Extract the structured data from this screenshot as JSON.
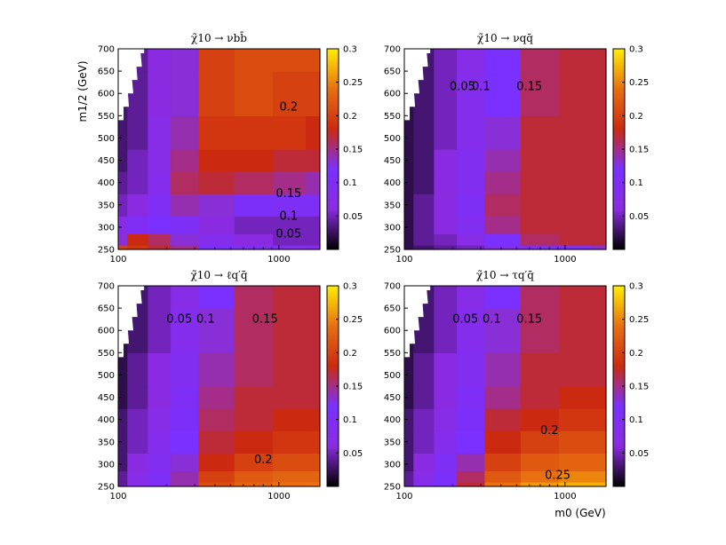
{
  "figure": {
    "ylabel": "m1/2 (GeV)",
    "xlabel": "m0 (GeV)"
  },
  "chart_data": [
    {
      "type": "heatmap",
      "title": "χ̃10 → νbb̄",
      "xlim": [
        100,
        1800
      ],
      "x_scale": "log",
      "ylim": [
        250,
        700
      ],
      "x_ticks": [
        "100",
        "1000"
      ],
      "y_ticks": [
        "250",
        "300",
        "350",
        "400",
        "450",
        "500",
        "550",
        "600",
        "650",
        "700"
      ],
      "colorbar": {
        "range": [
          0,
          0.3
        ],
        "ticks": [
          "0.05",
          "0.1",
          "0.15",
          "0.2",
          "0.25",
          "0.3"
        ],
        "colormap": [
          "#000000",
          "#8a2be2",
          "#7a30ff",
          "#cc2a10",
          "#e87010",
          "#ffee00"
        ]
      },
      "contour_levels": [
        "0.05",
        "0.1",
        "0.15",
        "0.2"
      ],
      "excluded_region": "white staircase at low m0, high m1/2",
      "grid": false,
      "x": [
        100,
        130,
        180,
        250,
        400,
        700,
        1200,
        1800
      ],
      "y": [
        250,
        270,
        300,
        350,
        400,
        450,
        500,
        600,
        700
      ],
      "values": [
        [
          0.2,
          0.19,
          0.17,
          0.15,
          0.12,
          0.1,
          0.09,
          0.08
        ],
        [
          0.13,
          0.18,
          0.16,
          0.13,
          0.08,
          0.06,
          0.05,
          0.05
        ],
        [
          0.07,
          0.1,
          0.12,
          0.1,
          0.06,
          0.05,
          0.05,
          0.05
        ],
        [
          0.05,
          0.06,
          0.1,
          0.14,
          0.13,
          0.11,
          0.1,
          0.1
        ],
        [
          0.04,
          0.05,
          0.08,
          0.16,
          0.17,
          0.16,
          0.15,
          0.14
        ],
        [
          0.03,
          0.05,
          0.07,
          0.15,
          0.18,
          0.18,
          0.17,
          0.17
        ],
        [
          0.03,
          0.04,
          0.07,
          0.14,
          0.19,
          0.19,
          0.19,
          0.18
        ],
        [
          0.03,
          0.04,
          0.06,
          0.13,
          0.2,
          0.21,
          0.2,
          0.2
        ],
        [
          0.03,
          0.04,
          0.06,
          0.13,
          0.2,
          0.21,
          0.21,
          0.21
        ]
      ]
    },
    {
      "type": "heatmap",
      "title": "χ̃10 → νqq̄",
      "xlim": [
        100,
        1800
      ],
      "x_scale": "log",
      "ylim": [
        250,
        700
      ],
      "x_ticks": [
        "100",
        "1000"
      ],
      "y_ticks": [
        "250",
        "300",
        "350",
        "400",
        "450",
        "500",
        "550",
        "600",
        "650",
        "700"
      ],
      "colorbar": {
        "range": [
          0,
          0.3
        ],
        "ticks": [
          "0.05",
          "0.1",
          "0.15",
          "0.2",
          "0.25",
          "0.3"
        ],
        "colormap": [
          "#000000",
          "#8a2be2",
          "#7a30ff",
          "#cc2a10",
          "#e87010",
          "#ffee00"
        ]
      },
      "contour_levels": [
        "0.05",
        "0.1",
        "0.15"
      ],
      "excluded_region": "white staircase at low m0, high m1/2",
      "grid": false,
      "x": [
        100,
        130,
        180,
        250,
        400,
        700,
        1200,
        1800
      ],
      "y": [
        250,
        270,
        300,
        350,
        400,
        450,
        500,
        600,
        700
      ],
      "values": [
        [
          0.02,
          0.03,
          0.04,
          0.05,
          0.08,
          0.1,
          0.12,
          0.13
        ],
        [
          0.02,
          0.04,
          0.05,
          0.07,
          0.12,
          0.16,
          0.17,
          0.17
        ],
        [
          0.02,
          0.04,
          0.06,
          0.09,
          0.15,
          0.17,
          0.17,
          0.17
        ],
        [
          0.02,
          0.04,
          0.06,
          0.1,
          0.16,
          0.17,
          0.17,
          0.17
        ],
        [
          0.02,
          0.03,
          0.06,
          0.09,
          0.15,
          0.17,
          0.17,
          0.17
        ],
        [
          0.02,
          0.03,
          0.06,
          0.09,
          0.14,
          0.17,
          0.17,
          0.17
        ],
        [
          0.02,
          0.03,
          0.05,
          0.08,
          0.13,
          0.17,
          0.17,
          0.17
        ],
        [
          0.02,
          0.03,
          0.05,
          0.08,
          0.12,
          0.16,
          0.17,
          0.17
        ],
        [
          0.02,
          0.03,
          0.05,
          0.07,
          0.12,
          0.16,
          0.17,
          0.17
        ]
      ]
    },
    {
      "type": "heatmap",
      "title": "χ̃10 → ℓq′q̄",
      "xlim": [
        100,
        1800
      ],
      "x_scale": "log",
      "ylim": [
        250,
        700
      ],
      "x_ticks": [
        "100",
        "1000"
      ],
      "y_ticks": [
        "250",
        "300",
        "350",
        "400",
        "450",
        "500",
        "550",
        "600",
        "650",
        "700"
      ],
      "colorbar": {
        "range": [
          0,
          0.3
        ],
        "ticks": [
          "0.05",
          "0.1",
          "0.15",
          "0.2",
          "0.25",
          "0.3"
        ],
        "colormap": [
          "#000000",
          "#8a2be2",
          "#7a30ff",
          "#cc2a10",
          "#e87010",
          "#ffee00"
        ]
      },
      "contour_levels": [
        "0.05",
        "0.1",
        "0.15",
        "0.2"
      ],
      "excluded_region": "white staircase at low m0, high m1/2",
      "grid": false,
      "x": [
        100,
        130,
        180,
        250,
        400,
        700,
        1200,
        1800
      ],
      "y": [
        250,
        270,
        300,
        350,
        400,
        450,
        500,
        600,
        700
      ],
      "values": [
        [
          0.04,
          0.07,
          0.1,
          0.14,
          0.21,
          0.23,
          0.24,
          0.24
        ],
        [
          0.04,
          0.07,
          0.1,
          0.14,
          0.2,
          0.22,
          0.23,
          0.23
        ],
        [
          0.03,
          0.06,
          0.09,
          0.13,
          0.18,
          0.2,
          0.21,
          0.21
        ],
        [
          0.03,
          0.05,
          0.08,
          0.12,
          0.17,
          0.18,
          0.19,
          0.19
        ],
        [
          0.03,
          0.05,
          0.07,
          0.11,
          0.16,
          0.17,
          0.18,
          0.18
        ],
        [
          0.02,
          0.04,
          0.06,
          0.1,
          0.15,
          0.17,
          0.17,
          0.17
        ],
        [
          0.02,
          0.04,
          0.06,
          0.09,
          0.14,
          0.16,
          0.17,
          0.17
        ],
        [
          0.02,
          0.03,
          0.05,
          0.08,
          0.13,
          0.16,
          0.17,
          0.17
        ],
        [
          0.02,
          0.03,
          0.05,
          0.07,
          0.12,
          0.16,
          0.17,
          0.17
        ]
      ]
    },
    {
      "type": "heatmap",
      "title": "χ̃10 → τq′q̄",
      "xlim": [
        100,
        1800
      ],
      "x_scale": "log",
      "ylim": [
        250,
        700
      ],
      "x_ticks": [
        "100",
        "1000"
      ],
      "y_ticks": [
        "250",
        "300",
        "350",
        "400",
        "450",
        "500",
        "550",
        "600",
        "650",
        "700"
      ],
      "colorbar": {
        "range": [
          0,
          0.3
        ],
        "ticks": [
          "0.05",
          "0.1",
          "0.15",
          "0.2",
          "0.25",
          "0.3"
        ],
        "colormap": [
          "#000000",
          "#8a2be2",
          "#7a30ff",
          "#cc2a10",
          "#e87010",
          "#ffee00"
        ]
      },
      "contour_levels": [
        "0.05",
        "0.1",
        "0.15",
        "0.2",
        "0.25"
      ],
      "excluded_region": "white staircase at low m0, high m1/2",
      "grid": false,
      "x": [
        100,
        130,
        180,
        250,
        400,
        700,
        1200,
        1800
      ],
      "y": [
        250,
        270,
        300,
        350,
        400,
        450,
        500,
        600,
        700
      ],
      "values": [
        [
          0.04,
          0.08,
          0.12,
          0.17,
          0.24,
          0.26,
          0.27,
          0.27
        ],
        [
          0.04,
          0.07,
          0.11,
          0.16,
          0.22,
          0.24,
          0.25,
          0.25
        ],
        [
          0.03,
          0.06,
          0.1,
          0.14,
          0.2,
          0.22,
          0.23,
          0.23
        ],
        [
          0.03,
          0.05,
          0.08,
          0.12,
          0.18,
          0.2,
          0.21,
          0.21
        ],
        [
          0.03,
          0.05,
          0.07,
          0.11,
          0.17,
          0.18,
          0.19,
          0.19
        ],
        [
          0.02,
          0.04,
          0.06,
          0.1,
          0.15,
          0.17,
          0.18,
          0.18
        ],
        [
          0.02,
          0.04,
          0.06,
          0.09,
          0.14,
          0.17,
          0.17,
          0.17
        ],
        [
          0.02,
          0.03,
          0.05,
          0.08,
          0.13,
          0.16,
          0.17,
          0.17
        ],
        [
          0.02,
          0.03,
          0.05,
          0.07,
          0.12,
          0.16,
          0.17,
          0.17
        ]
      ]
    }
  ]
}
